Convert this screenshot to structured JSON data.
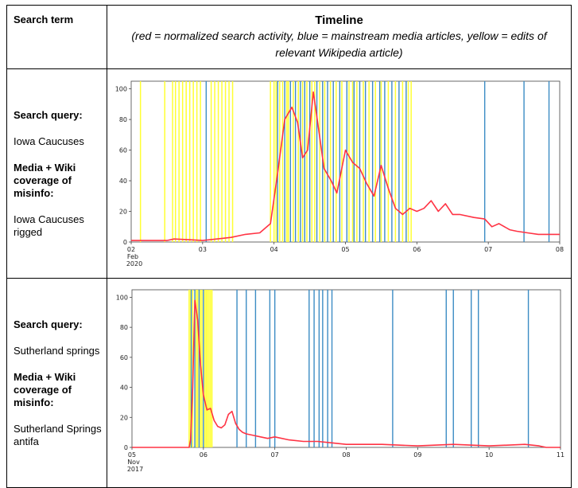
{
  "header": {
    "col1": "Search term",
    "col2_title": "Timeline",
    "col2_subtitle": "(red = normalized search activity, blue = mainstream media articles, yellow = edits of relevant Wikipedia article)"
  },
  "rows": [
    {
      "search_label": "Search query:",
      "search_value": "Iowa Caucuses",
      "coverage_label": "Media + Wiki coverage of misinfo:",
      "coverage_value": "Iowa Caucuses rigged"
    },
    {
      "search_label": "Search query:",
      "search_value": "Sutherland springs",
      "coverage_label": "Media + Wiki coverage of misinfo:",
      "coverage_value": "Sutherland Springs antifa"
    }
  ],
  "colors": {
    "search": "#ff3344",
    "media": "#3c8cc4",
    "wiki": "#ffff33"
  },
  "chart_data": [
    {
      "type": "line",
      "xlim": [
        0,
        6
      ],
      "ylim": [
        0,
        105
      ],
      "x_ticks": [
        0,
        1,
        2,
        3,
        4,
        5,
        6
      ],
      "x_tick_labels": [
        "02",
        "03",
        "04",
        "05",
        "06",
        "07",
        "08"
      ],
      "x_tick_sublabels": [
        "Feb",
        "2020"
      ],
      "y_ticks": [
        0,
        20,
        40,
        60,
        80,
        100
      ],
      "y_tick_labels": [
        "0",
        "20",
        "40",
        "60",
        "80",
        "100"
      ],
      "series": [
        {
          "x": [
            0,
            0.5,
            0.6,
            0.8,
            1.0,
            1.2,
            1.4,
            1.6,
            1.8,
            1.95,
            2.05,
            2.15,
            2.25,
            2.33,
            2.4,
            2.47,
            2.55,
            2.62,
            2.7,
            2.8,
            2.88,
            3.0,
            3.1,
            3.2,
            3.3,
            3.4,
            3.5,
            3.6,
            3.7,
            3.8,
            3.9,
            4.0,
            4.1,
            4.2,
            4.3,
            4.4,
            4.5,
            4.6,
            4.8,
            4.95,
            5.05,
            5.15,
            5.3,
            5.4,
            5.55,
            5.7,
            5.85,
            6.0
          ],
          "y": [
            1,
            1,
            2,
            1.5,
            1,
            2,
            3,
            5,
            6,
            12,
            45,
            80,
            88,
            78,
            55,
            60,
            98,
            75,
            48,
            40,
            32,
            60,
            52,
            48,
            38,
            30,
            50,
            35,
            22,
            18,
            22,
            20,
            22,
            27,
            20,
            25,
            18,
            18,
            16,
            15,
            10,
            12,
            8,
            7,
            6,
            5,
            5,
            5
          ]
        }
      ],
      "media_x": [
        1.05,
        2.05,
        2.15,
        2.23,
        2.3,
        2.37,
        2.43,
        2.5,
        2.6,
        2.68,
        2.75,
        2.83,
        2.92,
        3.02,
        3.12,
        3.2,
        3.28,
        3.38,
        3.48,
        3.55,
        3.65,
        3.75,
        3.85,
        4.95,
        5.5,
        5.85
      ],
      "wiki_x": [
        0.13,
        0.47,
        0.58,
        0.62,
        0.67,
        0.72,
        0.77,
        0.82,
        0.87,
        0.92,
        0.97,
        1.12,
        1.17,
        1.22,
        1.27,
        1.32,
        1.37,
        1.42,
        1.95,
        2.0,
        2.03,
        2.08,
        2.12,
        2.18,
        2.2,
        2.27,
        2.34,
        2.4,
        2.46,
        2.53,
        2.57,
        2.64,
        2.71,
        2.79,
        2.87,
        2.95,
        3.05,
        3.1,
        3.16,
        3.25,
        3.33,
        3.42,
        3.5,
        3.6,
        3.7,
        3.8,
        3.88,
        3.92
      ]
    },
    {
      "type": "line",
      "xlim": [
        0,
        6
      ],
      "ylim": [
        0,
        105
      ],
      "x_ticks": [
        0,
        1,
        2,
        3,
        4,
        5,
        6
      ],
      "x_tick_labels": [
        "05",
        "06",
        "07",
        "08",
        "09",
        "10",
        "11"
      ],
      "x_tick_sublabels": [
        "Nov",
        "2017"
      ],
      "y_ticks": [
        0,
        20,
        40,
        60,
        80,
        100
      ],
      "y_tick_labels": [
        "0",
        "20",
        "40",
        "60",
        "80",
        "100"
      ],
      "series": [
        {
          "x": [
            0,
            0.8,
            0.82,
            0.85,
            0.88,
            0.92,
            0.96,
            1.0,
            1.05,
            1.1,
            1.15,
            1.2,
            1.25,
            1.3,
            1.35,
            1.4,
            1.45,
            1.5,
            1.55,
            1.6,
            1.7,
            1.8,
            1.9,
            2.0,
            2.2,
            2.4,
            2.6,
            2.8,
            3.0,
            3.5,
            4.0,
            4.5,
            5.0,
            5.5,
            5.7,
            5.8,
            6.0
          ],
          "y": [
            0,
            0,
            5,
            40,
            98,
            85,
            55,
            35,
            25,
            26,
            18,
            14,
            13,
            15,
            22,
            24,
            16,
            12,
            10,
            9,
            8,
            7,
            6,
            7,
            5,
            4,
            4,
            3,
            2,
            2,
            1,
            2,
            1,
            2,
            1,
            0,
            0
          ]
        }
      ],
      "media_x": [
        0.83,
        0.88,
        0.94,
        1.0,
        1.47,
        1.6,
        1.73,
        1.93,
        2.0,
        2.48,
        2.55,
        2.62,
        2.67,
        2.74,
        2.8,
        3.65,
        4.4,
        4.5,
        4.75,
        4.85,
        5.55
      ],
      "wiki_x": [
        0.8,
        0.82,
        0.85,
        0.9,
        0.92,
        0.96,
        0.98,
        1.02,
        1.04,
        1.06,
        1.08,
        1.1,
        1.12
      ]
    }
  ]
}
